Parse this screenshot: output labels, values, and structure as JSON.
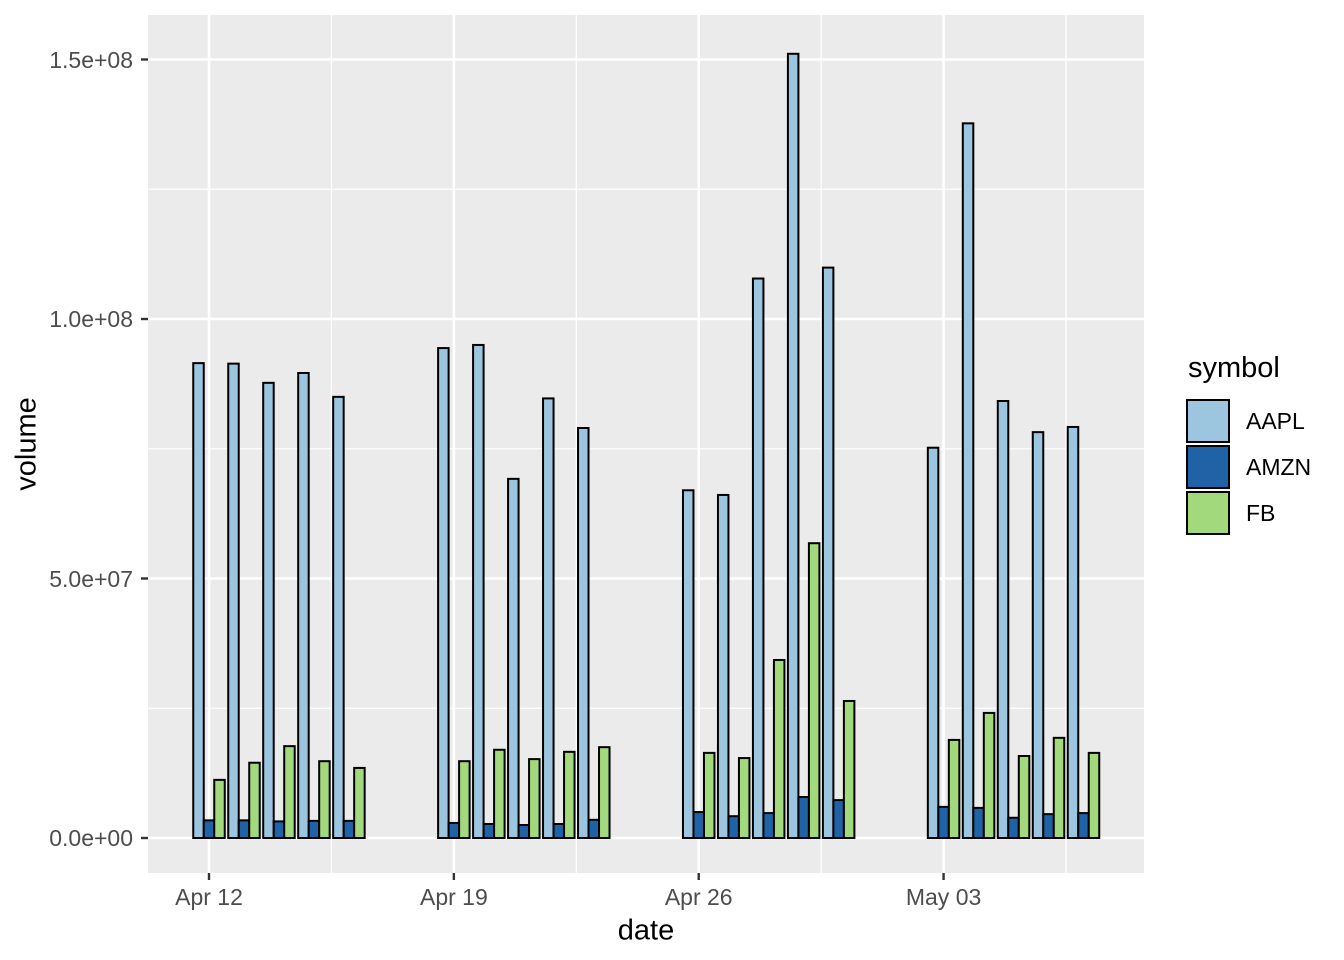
{
  "figure": {
    "background": "#ffffff",
    "panel_background": "#ebebeb",
    "grid_color": "#ffffff",
    "tick_mark_color": "#333333",
    "tick_label_color": "#4d4d4d",
    "bar_outline_color": "#000000"
  },
  "chart_data": {
    "type": "bar",
    "mode": "grouped",
    "title": "",
    "xlabel": "date",
    "ylabel": "volume",
    "grid": true,
    "legend": {
      "title": "symbol",
      "position": "right"
    },
    "ylim": [
      0,
      158000000
    ],
    "y_tick_values": [
      0,
      50000000,
      100000000,
      150000000
    ],
    "y_tick_labels": [
      "0.0e+00",
      "5.0e+07",
      "1.0e+08",
      "1.5e+08"
    ],
    "x_tick_labels": [
      "Apr 12",
      "Apr 19",
      "Apr 26",
      "May 03"
    ],
    "x_tick_day_offsets": [
      0,
      7,
      14,
      21
    ],
    "x_minor_day_offsets": [
      3.5,
      10.5,
      17.5,
      24.5
    ],
    "categories": [
      "Apr 12",
      "Apr 13",
      "Apr 14",
      "Apr 15",
      "Apr 16",
      "Apr 19",
      "Apr 20",
      "Apr 21",
      "Apr 22",
      "Apr 23",
      "Apr 26",
      "Apr 27",
      "Apr 28",
      "Apr 29",
      "Apr 30",
      "May 03",
      "May 04",
      "May 05",
      "May 06",
      "May 07"
    ],
    "day_offsets": [
      0,
      1,
      2,
      3,
      4,
      7,
      8,
      9,
      10,
      11,
      14,
      15,
      16,
      17,
      18,
      21,
      22,
      23,
      24,
      25
    ],
    "series": [
      {
        "name": "AAPL",
        "color": "#9CC5DF",
        "values": [
          91500000,
          91400000,
          87700000,
          89600000,
          85000000,
          94400000,
          95000000,
          69200000,
          84700000,
          79000000,
          67000000,
          66100000,
          107800000,
          151100000,
          109900000,
          75200000,
          137700000,
          84200000,
          78200000,
          79200000
        ]
      },
      {
        "name": "AMZN",
        "color": "#1F63A6",
        "values": [
          3400000,
          3400000,
          3200000,
          3300000,
          3300000,
          2900000,
          2700000,
          2500000,
          2700000,
          3500000,
          5000000,
          4200000,
          4800000,
          7900000,
          7300000,
          6000000,
          5800000,
          3900000,
          4600000,
          4800000
        ]
      },
      {
        "name": "FB",
        "color": "#A2D97C",
        "values": [
          11200000,
          14500000,
          17700000,
          14800000,
          13500000,
          14800000,
          17000000,
          15200000,
          16600000,
          17500000,
          16400000,
          15400000,
          34300000,
          56800000,
          26400000,
          18900000,
          24100000,
          15800000,
          19300000,
          16400000
        ]
      }
    ]
  }
}
